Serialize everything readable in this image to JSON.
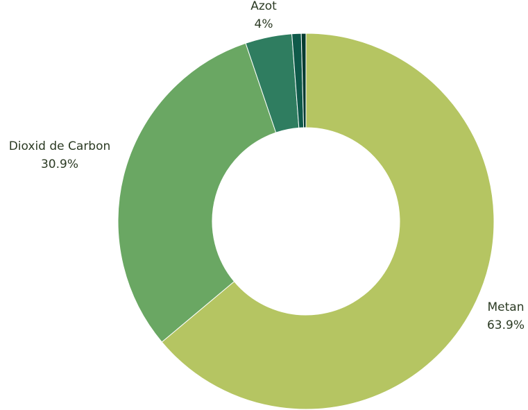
{
  "chart_data": {
    "type": "pie",
    "title": "",
    "slices": [
      {
        "label": "Metan",
        "value": 63.9,
        "value_label": "63.9%",
        "color": "#b5c562",
        "show_label": true
      },
      {
        "label": "Dioxid de Carbon",
        "value": 30.9,
        "value_label": "30.9%",
        "color": "#6aa763",
        "show_label": true
      },
      {
        "label": "Azot",
        "value": 4.0,
        "value_label": "4%",
        "color": "#2f7d60",
        "show_label": true
      },
      {
        "label": "",
        "value": 0.8,
        "value_label": "",
        "color": "#0f5a4a",
        "show_label": false
      },
      {
        "label": "",
        "value": 0.4,
        "value_label": "",
        "color": "#063b30",
        "show_label": false
      }
    ]
  }
}
